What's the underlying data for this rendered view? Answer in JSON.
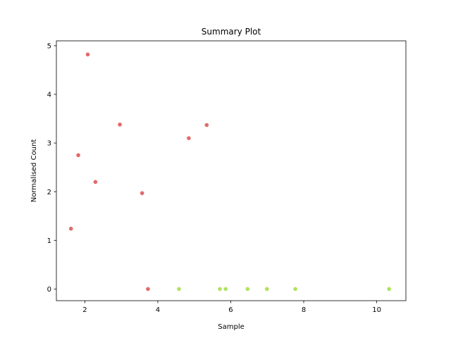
{
  "chart_data": {
    "type": "scatter",
    "title": "Summary Plot",
    "xlabel": "Sample",
    "ylabel": "Normalised Count",
    "xlim": [
      1.22,
      10.8
    ],
    "ylim": [
      -0.24,
      5.1
    ],
    "xticks": [
      2,
      4,
      6,
      8,
      10
    ],
    "yticks": [
      0,
      1,
      2,
      3,
      4,
      5
    ],
    "grid": false,
    "series": [
      {
        "color": "#e05a5a",
        "points": [
          [
            1.62,
            1.24
          ],
          [
            1.82,
            2.75
          ],
          [
            2.08,
            4.82
          ],
          [
            2.29,
            2.2
          ],
          [
            2.96,
            3.38
          ],
          [
            3.57,
            1.97
          ],
          [
            3.73,
            0.0
          ],
          [
            4.85,
            3.1
          ],
          [
            5.34,
            3.37
          ]
        ]
      },
      {
        "color": "#a6e04b",
        "points": [
          [
            4.58,
            0.0
          ],
          [
            5.7,
            0.0
          ],
          [
            5.86,
            0.0
          ],
          [
            6.46,
            0.0
          ],
          [
            6.99,
            0.0
          ],
          [
            7.77,
            0.0
          ],
          [
            10.34,
            0.0
          ]
        ]
      }
    ]
  }
}
